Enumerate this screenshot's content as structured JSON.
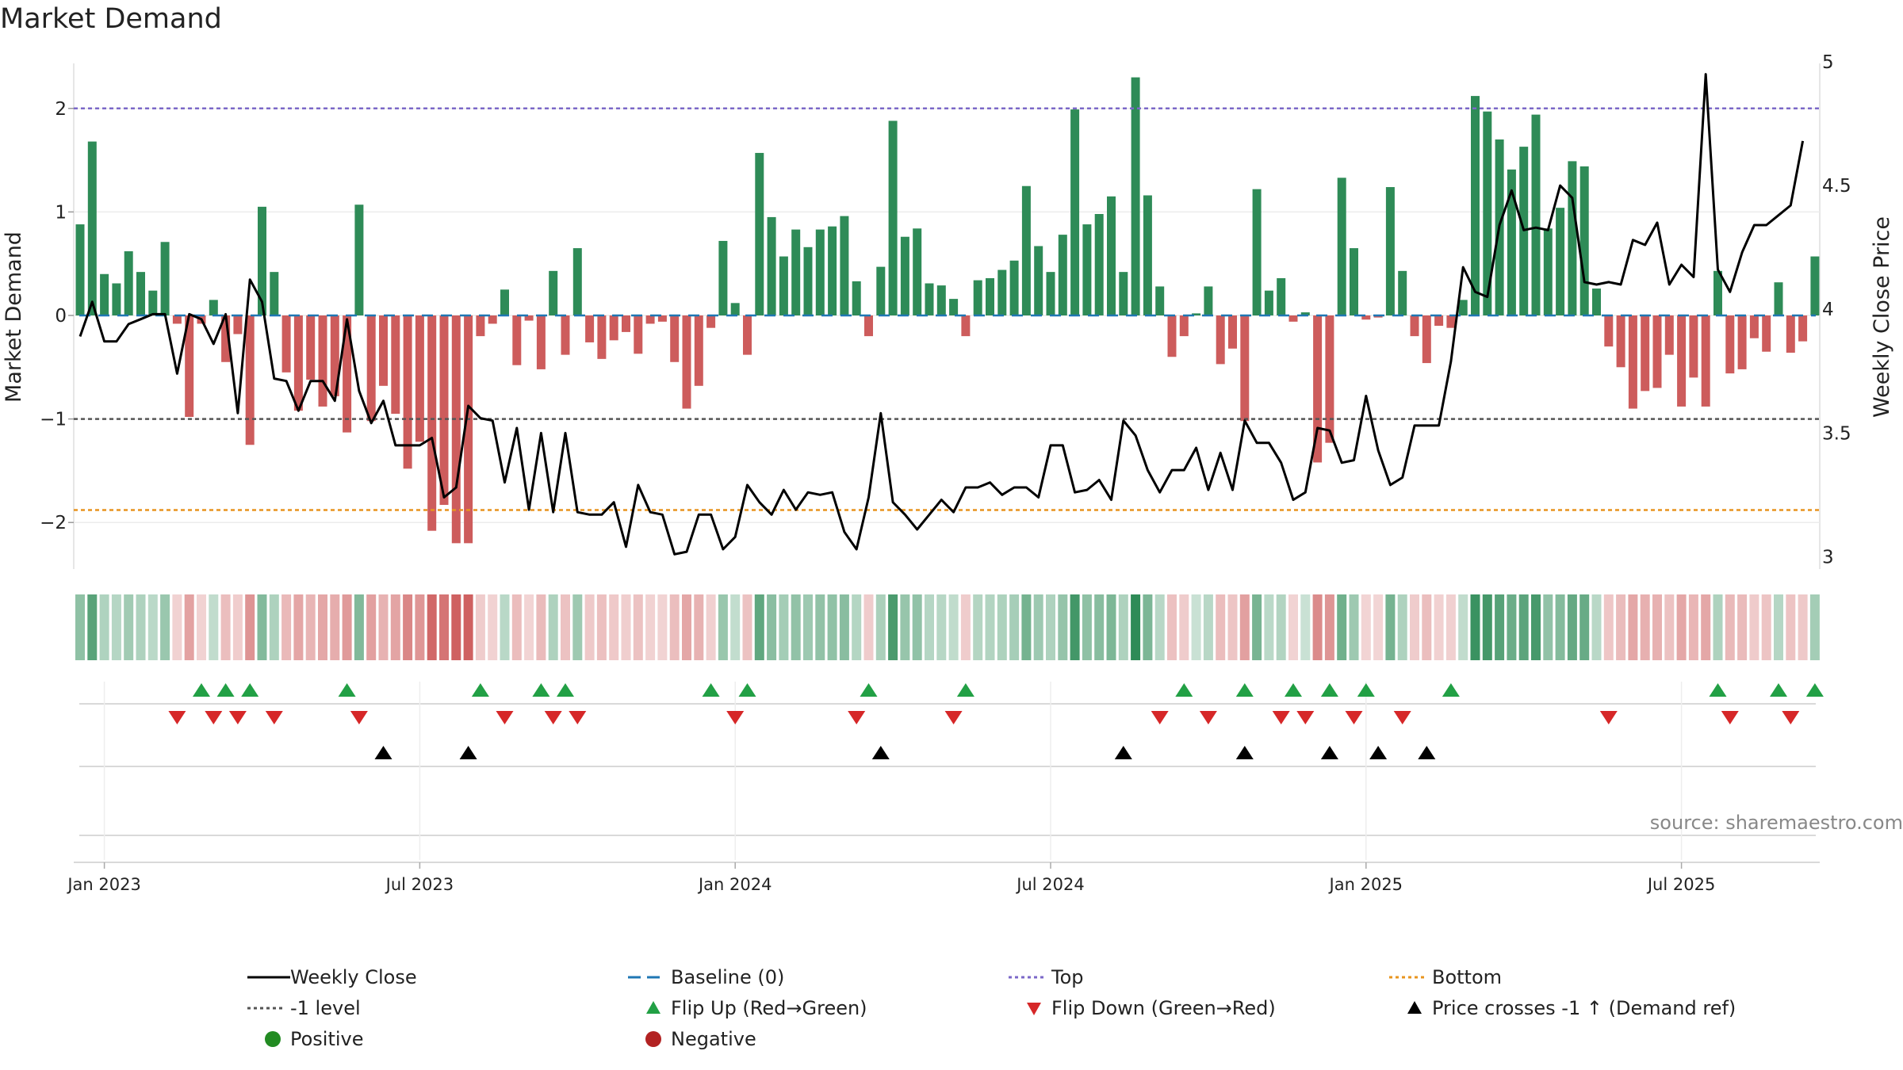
{
  "chart_data": {
    "type": "bar",
    "title": "Market Demand",
    "source": "source: sharemaestro.com",
    "y_left_label": "Market Demand",
    "y_right_label": "Weekly Close Price",
    "y_left_range": [
      -2.45,
      2.45
    ],
    "y_right_range": [
      2.95,
      5.0
    ],
    "y_left_ticks": [
      {
        "v": 2,
        "label": "2"
      },
      {
        "v": 1,
        "label": "1"
      },
      {
        "v": 0,
        "label": "0"
      },
      {
        "v": -1,
        "label": "−1"
      },
      {
        "v": -2,
        "label": "−2"
      }
    ],
    "y_right_ticks": [
      {
        "v": 5,
        "label": "5"
      },
      {
        "v": 4.5,
        "label": "4.5"
      },
      {
        "v": 4,
        "label": "4"
      },
      {
        "v": 3.5,
        "label": "3.5"
      },
      {
        "v": 3,
        "label": "3"
      }
    ],
    "x_ticks": [
      {
        "week": 2,
        "label": "Jan 2023"
      },
      {
        "week": 28,
        "label": "Jul 2023"
      },
      {
        "week": 54,
        "label": "Jan 2024"
      },
      {
        "week": 80,
        "label": "Jul 2024"
      },
      {
        "week": 106,
        "label": "Jan 2025"
      },
      {
        "week": 132,
        "label": "Jul 2025"
      }
    ],
    "reference_lines": {
      "top": 2.0,
      "bottom": -1.88,
      "level": -1.0,
      "baseline": 0
    },
    "demand": [
      0.88,
      1.68,
      0.4,
      0.31,
      0.62,
      0.42,
      0.24,
      0.71,
      -0.08,
      -0.98,
      -0.08,
      0.15,
      -0.45,
      -0.18,
      -1.25,
      1.05,
      0.42,
      -0.55,
      -0.92,
      -0.62,
      -0.88,
      -0.78,
      -1.13,
      1.07,
      -1.02,
      -0.68,
      -0.95,
      -1.48,
      -1.22,
      -2.08,
      -1.83,
      -2.2,
      -2.2,
      -0.2,
      -0.08,
      0.25,
      -0.48,
      -0.05,
      -0.52,
      0.43,
      -0.38,
      0.65,
      -0.26,
      -0.42,
      -0.24,
      -0.16,
      -0.37,
      -0.08,
      -0.06,
      -0.45,
      -0.9,
      -0.68,
      -0.12,
      0.72,
      0.12,
      -0.38,
      1.57,
      0.95,
      0.57,
      0.83,
      0.66,
      0.83,
      0.86,
      0.96,
      0.33,
      -0.2,
      0.47,
      1.88,
      0.76,
      0.84,
      0.31,
      0.29,
      0.16,
      -0.2,
      0.34,
      0.36,
      0.44,
      0.53,
      1.25,
      0.67,
      0.42,
      0.78,
      1.99,
      0.88,
      0.98,
      1.15,
      0.42,
      2.3,
      1.16,
      0.28,
      -0.4,
      -0.2,
      0.02,
      0.28,
      -0.47,
      -0.32,
      -1.02,
      1.22,
      0.24,
      0.36,
      -0.06,
      0.03,
      -1.42,
      -1.23,
      1.33,
      0.65,
      -0.04,
      -0.02,
      1.24,
      0.43,
      -0.2,
      -0.46,
      -0.1,
      -0.12,
      0.15,
      2.12,
      1.97,
      1.7,
      1.41,
      1.63,
      1.94,
      0.84,
      1.04,
      1.49,
      1.44,
      0.26,
      -0.3,
      -0.5,
      -0.9,
      -0.73,
      -0.7,
      -0.38,
      -0.88,
      -0.6,
      -0.88,
      0.43,
      -0.56,
      -0.52,
      -0.22,
      -0.35,
      0.32,
      -0.36,
      -0.25,
      0.57
    ],
    "weekly_close": [
      3.89,
      4.03,
      3.87,
      3.87,
      3.94,
      3.96,
      3.98,
      3.98,
      3.74,
      3.98,
      3.96,
      3.86,
      3.98,
      3.58,
      4.12,
      4.03,
      3.72,
      3.71,
      3.59,
      3.71,
      3.71,
      3.63,
      3.96,
      3.67,
      3.54,
      3.63,
      3.45,
      3.45,
      3.45,
      3.48,
      3.24,
      3.28,
      3.61,
      3.56,
      3.55,
      3.3,
      3.52,
      3.19,
      3.5,
      3.18,
      3.5,
      3.18,
      3.17,
      3.17,
      3.22,
      3.04,
      3.29,
      3.18,
      3.17,
      3.01,
      3.02,
      3.17,
      3.17,
      3.03,
      3.08,
      3.29,
      3.22,
      3.17,
      3.27,
      3.19,
      3.26,
      3.25,
      3.26,
      3.1,
      3.03,
      3.24,
      3.58,
      3.22,
      3.17,
      3.11,
      3.17,
      3.23,
      3.18,
      3.28,
      3.28,
      3.3,
      3.25,
      3.28,
      3.28,
      3.24,
      3.45,
      3.45,
      3.26,
      3.27,
      3.31,
      3.23,
      3.55,
      3.49,
      3.35,
      3.26,
      3.35,
      3.35,
      3.44,
      3.27,
      3.42,
      3.27,
      3.55,
      3.46,
      3.46,
      3.38,
      3.23,
      3.26,
      3.52,
      3.51,
      3.38,
      3.39,
      3.65,
      3.43,
      3.29,
      3.32,
      3.53,
      3.53,
      3.53,
      3.79,
      4.17,
      4.07,
      4.05,
      4.34,
      4.48,
      4.32,
      4.33,
      4.32,
      4.5,
      4.45,
      4.11,
      4.1,
      4.11,
      4.1,
      4.28,
      4.26,
      4.35,
      4.1,
      4.18,
      4.13,
      4.95,
      4.16,
      4.07,
      4.23,
      4.34,
      4.34,
      4.38,
      4.42,
      4.68
    ],
    "flip_up_weeks": [
      10,
      12,
      14,
      22,
      33,
      38,
      40,
      52,
      55,
      65,
      73,
      91,
      96,
      100,
      103,
      106,
      113,
      135,
      140,
      143
    ],
    "flip_down_weeks": [
      8,
      11,
      13,
      16,
      23,
      35,
      39,
      41,
      54,
      64,
      72,
      89,
      93,
      99,
      101,
      105,
      109,
      126,
      136,
      141
    ],
    "price_cross_weeks": [
      25,
      32,
      66,
      86,
      96,
      103,
      107,
      111
    ],
    "legend": [
      {
        "label": "Weekly Close",
        "key": "line-solid"
      },
      {
        "label": "Baseline (0)",
        "key": "line-dash-blue"
      },
      {
        "label": "Top",
        "key": "line-dot-purple"
      },
      {
        "label": "Bottom",
        "key": "line-dot-orange"
      },
      {
        "label": "-1 level",
        "key": "line-dot-grey"
      },
      {
        "label": "Flip Up (Red→Green)",
        "key": "tri-up-green"
      },
      {
        "label": "Flip Down (Green→Red)",
        "key": "tri-down-red"
      },
      {
        "label": "Price crosses -1 ↑ (Demand ref)",
        "key": "tri-up-black"
      },
      {
        "label": "Positive",
        "key": "dot-green"
      },
      {
        "label": "Negative",
        "key": "dot-red"
      }
    ],
    "colors": {
      "positive": "#2e8b57",
      "negative": "#cd5c5c",
      "close": "#000000",
      "top": "#7b68c8",
      "bottom": "#e8941e",
      "level": "#555555",
      "baseline": "#1f77b4",
      "flip_up": "#22a045",
      "flip_down": "#d62728",
      "cross": "#000000",
      "legend_positive": "#228b22",
      "legend_negative": "#b22222"
    }
  }
}
